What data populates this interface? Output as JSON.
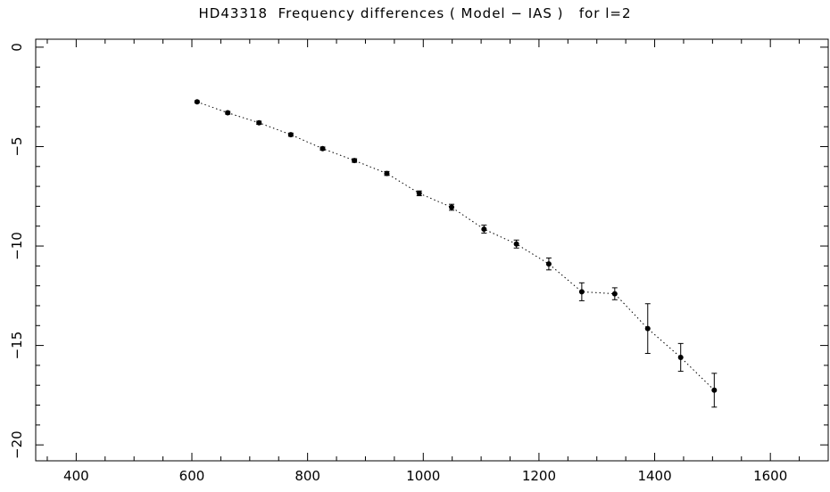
{
  "chart_data": {
    "type": "scatter",
    "title": "HD43318  Frequency differences ( Model − IAS )   for l=2",
    "xlabel": "",
    "ylabel": "",
    "xlim": [
      330,
      1700
    ],
    "ylim": [
      -20.8,
      0.4
    ],
    "x_major_ticks": [
      400,
      600,
      800,
      1000,
      1200,
      1400,
      1600
    ],
    "x_tick_labels": [
      "400",
      "600",
      "800",
      "1000",
      "1200",
      "1400",
      "1600"
    ],
    "y_major_ticks": [
      0,
      -5,
      -10,
      -15,
      -20
    ],
    "y_tick_labels": [
      "0",
      "−5",
      "−10",
      "−15",
      "−20"
    ],
    "x_minor_step": 50,
    "y_minor_step": 1,
    "line_style": "dotted",
    "grid": false,
    "legend": false,
    "series": [
      {
        "points": [
          {
            "x": 609,
            "y": -2.75,
            "err": 0.05
          },
          {
            "x": 662,
            "y": -3.3,
            "err": 0.07
          },
          {
            "x": 716,
            "y": -3.8,
            "err": 0.08
          },
          {
            "x": 771,
            "y": -4.4,
            "err": 0.08
          },
          {
            "x": 826,
            "y": -5.1,
            "err": 0.08
          },
          {
            "x": 881,
            "y": -5.7,
            "err": 0.09
          },
          {
            "x": 937,
            "y": -6.35,
            "err": 0.1
          },
          {
            "x": 993,
            "y": -7.35,
            "err": 0.12
          },
          {
            "x": 1049,
            "y": -8.05,
            "err": 0.15
          },
          {
            "x": 1105,
            "y": -9.15,
            "err": 0.2
          },
          {
            "x": 1161,
            "y": -9.9,
            "err": 0.2
          },
          {
            "x": 1217,
            "y": -10.9,
            "err": 0.3
          },
          {
            "x": 1274,
            "y": -12.3,
            "err": 0.45
          },
          {
            "x": 1331,
            "y": -12.4,
            "err": 0.3
          },
          {
            "x": 1388,
            "y": -14.15,
            "err": 1.25
          },
          {
            "x": 1445,
            "y": -15.6,
            "err": 0.7
          },
          {
            "x": 1503,
            "y": -17.25,
            "err": 0.85
          }
        ]
      }
    ]
  }
}
